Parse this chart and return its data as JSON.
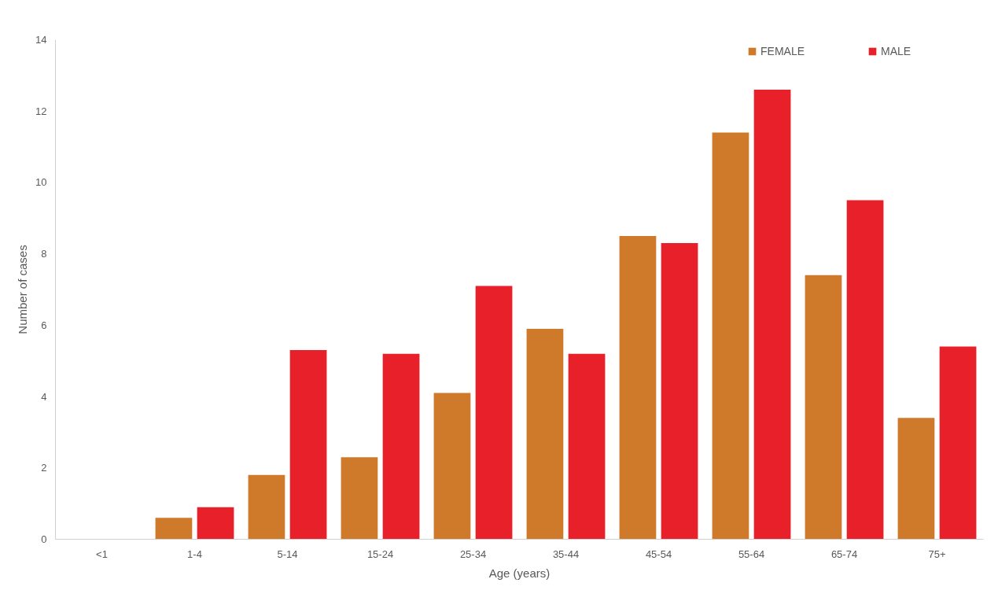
{
  "chart_data": {
    "type": "bar",
    "xlabel": "Age (years)",
    "ylabel": "Number of cases",
    "categories": [
      "<1",
      "1-4",
      "5-14",
      "15-24",
      "25-34",
      "35-44",
      "45-54",
      "55-64",
      "65-74",
      "75+"
    ],
    "series": [
      {
        "name": "FEMALE",
        "color": "#cf7a2a",
        "values": [
          0,
          0.6,
          1.8,
          2.3,
          4.1,
          5.9,
          8.5,
          11.4,
          7.4,
          3.4
        ]
      },
      {
        "name": "MALE",
        "color": "#e8202a",
        "values": [
          0,
          0.9,
          5.3,
          5.2,
          7.1,
          5.2,
          8.3,
          12.6,
          9.5,
          5.4
        ]
      }
    ],
    "ylim": [
      0,
      14
    ],
    "yticks": [
      0,
      2,
      4,
      6,
      8,
      10,
      12,
      14
    ],
    "grid": false,
    "legend": "top right"
  }
}
